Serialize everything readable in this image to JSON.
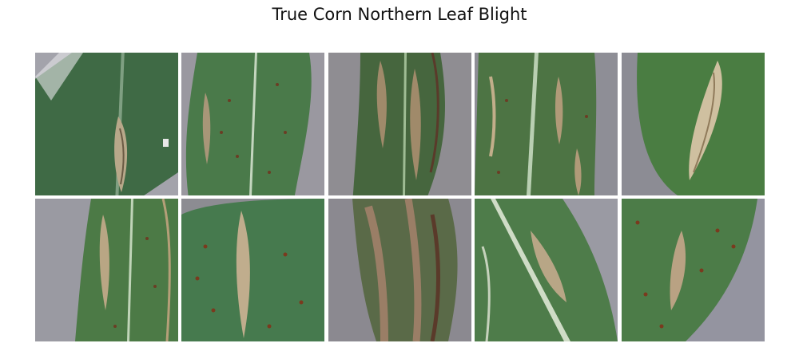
{
  "figure": {
    "title": "True Corn Northern Leaf Blight"
  },
  "images": [
    {
      "label": "corn-leaf-1",
      "background": "#9e9ea6",
      "leaf": "#3f6a45",
      "lesion": "#b8a88a"
    },
    {
      "label": "corn-leaf-2",
      "background": "#9a98a0",
      "leaf": "#4a7a4a",
      "lesion": "#a89678"
    },
    {
      "label": "corn-leaf-3",
      "background": "#8f8d92",
      "leaf": "#46663e",
      "lesion": "#a08a6a"
    },
    {
      "label": "corn-leaf-4",
      "background": "#8e8e96",
      "leaf": "#4d7444",
      "lesion": "#b09a78"
    },
    {
      "label": "corn-leaf-5",
      "background": "#8c8c94",
      "leaf": "#4a7d42",
      "lesion": "#cfc0a0"
    },
    {
      "label": "corn-leaf-6",
      "background": "#9a9aa2",
      "leaf": "#4c7a46",
      "lesion": "#b9a684"
    },
    {
      "label": "corn-leaf-7",
      "background": "#8c8c92",
      "leaf": "#467a4e",
      "lesion": "#c0ad8d"
    },
    {
      "label": "corn-leaf-8",
      "background": "#8b8990",
      "leaf": "#5a6a48",
      "lesion": "#9a7e66"
    },
    {
      "label": "corn-leaf-9",
      "background": "#9a9aa3",
      "leaf": "#4e7c4a",
      "lesion": "#b8a686"
    },
    {
      "label": "corn-leaf-10",
      "background": "#9494a0",
      "leaf": "#4c7c48",
      "lesion": "#b9a283"
    }
  ]
}
